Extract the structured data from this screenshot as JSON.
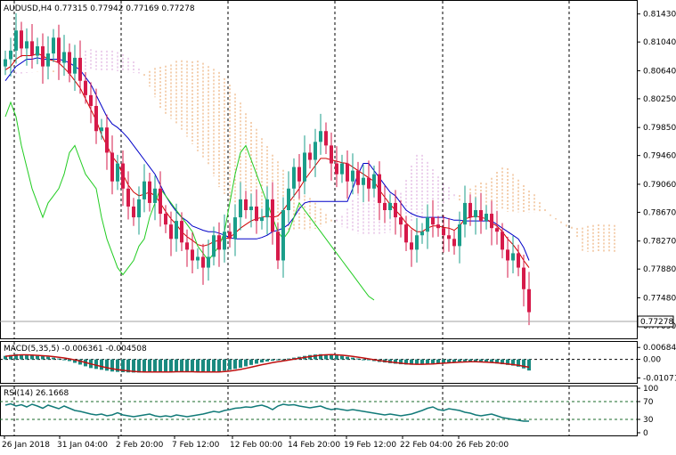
{
  "symbol_line": "AUDUSD,H4  0.77315 0.77942 0.77169 0.77278",
  "macd_label": "MACD(5,35,5) -0.006361 -0.004508",
  "rsi_label": "RSI(14) 26.1668",
  "current_price": "0.77278",
  "colors": {
    "bull": "#1a9e8a",
    "bear": "#d61a4a",
    "kijun": "#0000c8",
    "tenkan": "#d00000",
    "chikou": "#22cc22",
    "cloud_up": "#e8a060",
    "cloud_down": "#d8a0d8",
    "macd_hist": "#1a8a80",
    "macd_signal": "#c01010",
    "rsi": "#117a78",
    "grid": "#000000"
  },
  "chart_data": [
    {
      "type": "candlestick",
      "title": "AUDUSD,H4",
      "price_ticks": [
        "0.81430",
        "0.81040",
        "0.80640",
        "0.80250",
        "0.79850",
        "0.79460",
        "0.79060",
        "0.78670",
        "0.78270",
        "0.77880",
        "0.77480",
        "0.77090"
      ],
      "time_labels": [
        "26 Jan 2018",
        "31 Jan 04:00",
        "2 Feb 20:00",
        "7 Feb 12:00",
        "12 Feb 00:00",
        "14 Feb 20:00",
        "19 Feb 12:00",
        "22 Feb 04:00",
        "26 Feb 20:00"
      ],
      "ylim": [
        0.7699,
        0.8155
      ],
      "close": [
        0.808,
        0.8092,
        0.812,
        0.8095,
        0.8105,
        0.8085,
        0.8098,
        0.807,
        0.8088,
        0.811,
        0.8075,
        0.809,
        0.806,
        0.8082,
        0.805,
        0.803,
        0.8015,
        0.798,
        0.7985,
        0.795,
        0.791,
        0.7935,
        0.79,
        0.7875,
        0.786,
        0.7885,
        0.791,
        0.788,
        0.79,
        0.7865,
        0.785,
        0.783,
        0.7855,
        0.7825,
        0.7815,
        0.78,
        0.7805,
        0.779,
        0.7805,
        0.7835,
        0.7815,
        0.784,
        0.783,
        0.786,
        0.7885,
        0.787,
        0.7875,
        0.7855,
        0.786,
        0.7885,
        0.784,
        0.78,
        0.787,
        0.79,
        0.793,
        0.791,
        0.795,
        0.794,
        0.7965,
        0.798,
        0.796,
        0.7935,
        0.792,
        0.7935,
        0.791,
        0.7925,
        0.7905,
        0.7915,
        0.79,
        0.792,
        0.788,
        0.787,
        0.788,
        0.786,
        0.785,
        0.7825,
        0.7815,
        0.7835,
        0.784,
        0.786,
        0.785,
        0.7845,
        0.7835,
        0.783,
        0.782,
        0.785,
        0.788,
        0.786,
        0.787,
        0.7855,
        0.7865,
        0.7845,
        0.784,
        0.7815,
        0.78,
        0.781,
        0.779,
        0.776,
        0.7728
      ],
      "tenkan": [
        0.8065,
        0.807,
        0.808,
        0.8085,
        0.8085,
        0.8085,
        0.8088,
        0.8085,
        0.808,
        0.8078,
        0.8075,
        0.8068,
        0.806,
        0.805,
        0.804,
        0.8025,
        0.801,
        0.7995,
        0.7975,
        0.796,
        0.7945,
        0.7935,
        0.792,
        0.7905,
        0.7895,
        0.789,
        0.7892,
        0.7895,
        0.789,
        0.788,
        0.7868,
        0.7858,
        0.785,
        0.784,
        0.7833,
        0.7828,
        0.7822,
        0.782,
        0.7822,
        0.7826,
        0.7828,
        0.783,
        0.7832,
        0.7838,
        0.7845,
        0.785,
        0.7855,
        0.7858,
        0.786,
        0.7862,
        0.786,
        0.7862,
        0.787,
        0.788,
        0.789,
        0.79,
        0.7912,
        0.7922,
        0.7932,
        0.7942,
        0.7942,
        0.794,
        0.7938,
        0.7936,
        0.7935,
        0.793,
        0.7925,
        0.792,
        0.7915,
        0.791,
        0.7898,
        0.7888,
        0.7878,
        0.787,
        0.7862,
        0.7852,
        0.7845,
        0.784,
        0.784,
        0.7845,
        0.7848,
        0.7848,
        0.7846,
        0.7845,
        0.7842,
        0.7848,
        0.7858,
        0.786,
        0.7862,
        0.786,
        0.7858,
        0.7852,
        0.7848,
        0.784,
        0.783,
        0.7822,
        0.7812,
        0.78,
        0.779
      ],
      "kijun": [
        0.805,
        0.806,
        0.807,
        0.8075,
        0.808,
        0.808,
        0.8082,
        0.808,
        0.808,
        0.808,
        0.808,
        0.8078,
        0.8075,
        0.807,
        0.8065,
        0.8055,
        0.8045,
        0.803,
        0.8015,
        0.8,
        0.799,
        0.7985,
        0.7978,
        0.797,
        0.796,
        0.795,
        0.794,
        0.793,
        0.792,
        0.7905,
        0.789,
        0.7878,
        0.7868,
        0.786,
        0.7855,
        0.7848,
        0.7845,
        0.7842,
        0.784,
        0.784,
        0.7838,
        0.7835,
        0.7832,
        0.783,
        0.783,
        0.783,
        0.783,
        0.783,
        0.7832,
        0.7835,
        0.784,
        0.7842,
        0.7845,
        0.785,
        0.786,
        0.7872,
        0.788,
        0.7882,
        0.7882,
        0.7882,
        0.7882,
        0.7882,
        0.7882,
        0.7882,
        0.7882,
        0.79,
        0.792,
        0.7935,
        0.7935,
        0.7925,
        0.7915,
        0.7905,
        0.7895,
        0.789,
        0.788,
        0.787,
        0.7865,
        0.7862,
        0.786,
        0.786,
        0.786,
        0.786,
        0.786,
        0.7858,
        0.7856,
        0.7856,
        0.7855,
        0.7855,
        0.7855,
        0.7855,
        0.7855,
        0.7855,
        0.785,
        0.7845,
        0.784,
        0.7835,
        0.783,
        0.7818,
        0.78
      ],
      "chikou": [
        0.8,
        0.802,
        0.8,
        0.796,
        0.793,
        0.79,
        0.788,
        0.786,
        0.788,
        0.789,
        0.79,
        0.792,
        0.795,
        0.796,
        0.794,
        0.792,
        0.791,
        0.79,
        0.786,
        0.783,
        0.781,
        0.779,
        0.778,
        0.779,
        0.78,
        0.782,
        0.783,
        0.786,
        0.788,
        0.79,
        0.789,
        0.788,
        0.787,
        0.786,
        0.785,
        0.784,
        0.782,
        0.781,
        0.78,
        0.781,
        0.782,
        0.784,
        0.788,
        0.792,
        0.795,
        0.796,
        0.794,
        0.792,
        0.79,
        0.788,
        0.786,
        0.784,
        0.783,
        0.784,
        0.786,
        0.788,
        0.787,
        0.786,
        0.785,
        0.784,
        0.783,
        0.782,
        0.781,
        0.78,
        0.779,
        0.778,
        0.777,
        0.776,
        0.775,
        0.7745
      ]
    },
    {
      "type": "bar",
      "title": "MACD(5,35,5) -0.006361 -0.004508",
      "ticks": [
        "0.006842",
        "0.00",
        "-0.010711"
      ],
      "ylim": [
        -0.0125,
        0.0085
      ],
      "hist": [
        0.002,
        0.0025,
        0.003,
        0.0028,
        0.0025,
        0.0022,
        0.002,
        0.0018,
        0.0015,
        0.001,
        0.0005,
        0.0,
        -0.001,
        -0.002,
        -0.003,
        -0.004,
        -0.005,
        -0.0055,
        -0.006,
        -0.0065,
        -0.007,
        -0.0072,
        -0.0074,
        -0.0075,
        -0.0076,
        -0.0076,
        -0.0075,
        -0.0074,
        -0.0073,
        -0.0072,
        -0.0071,
        -0.007,
        -0.007,
        -0.007,
        -0.0071,
        -0.0072,
        -0.0073,
        -0.0074,
        -0.0074,
        -0.0073,
        -0.007,
        -0.0065,
        -0.006,
        -0.0055,
        -0.0048,
        -0.004,
        -0.0032,
        -0.0025,
        -0.0018,
        -0.0012,
        -0.0008,
        -0.0004,
        0.0,
        0.0005,
        0.001,
        0.0015,
        0.002,
        0.0025,
        0.0028,
        0.003,
        0.0029,
        0.0027,
        0.0024,
        0.002,
        0.0015,
        0.001,
        0.0005,
        0.0,
        -0.0005,
        -0.001,
        -0.0015,
        -0.0018,
        -0.0022,
        -0.0025,
        -0.0028,
        -0.003,
        -0.0031,
        -0.003,
        -0.0028,
        -0.0026,
        -0.0024,
        -0.0022,
        -0.002,
        -0.0018,
        -0.0016,
        -0.0014,
        -0.0012,
        -0.0012,
        -0.0014,
        -0.0016,
        -0.0018,
        -0.002,
        -0.0024,
        -0.0028,
        -0.0032,
        -0.0036,
        -0.0042,
        -0.0052,
        -0.0064
      ],
      "signal": [
        0.0018,
        0.0021,
        0.0024,
        0.0026,
        0.0026,
        0.0025,
        0.0023,
        0.0021,
        0.0019,
        0.0016,
        0.0012,
        0.0008,
        0.0003,
        -0.0003,
        -0.001,
        -0.0018,
        -0.0026,
        -0.0034,
        -0.0041,
        -0.0048,
        -0.0054,
        -0.0059,
        -0.0063,
        -0.0066,
        -0.0069,
        -0.0071,
        -0.0072,
        -0.0073,
        -0.0073,
        -0.0073,
        -0.0072,
        -0.0072,
        -0.0071,
        -0.0071,
        -0.0071,
        -0.0071,
        -0.0072,
        -0.0072,
        -0.0073,
        -0.0073,
        -0.0072,
        -0.007,
        -0.0067,
        -0.0063,
        -0.0058,
        -0.0052,
        -0.0045,
        -0.0038,
        -0.0031,
        -0.0025,
        -0.0019,
        -0.0014,
        -0.0009,
        -0.0004,
        0.0001,
        0.0006,
        0.0011,
        0.0016,
        0.002,
        0.0024,
        0.0026,
        0.0027,
        0.0026,
        0.0024,
        0.0021,
        0.0017,
        0.0013,
        0.0008,
        0.0003,
        -0.0002,
        -0.0007,
        -0.0011,
        -0.0015,
        -0.0019,
        -0.0022,
        -0.0025,
        -0.0027,
        -0.0028,
        -0.0028,
        -0.0027,
        -0.0026,
        -0.0024,
        -0.0022,
        -0.002,
        -0.0018,
        -0.0016,
        -0.0015,
        -0.0014,
        -0.0014,
        -0.0015,
        -0.0016,
        -0.0018,
        -0.002,
        -0.0023,
        -0.0026,
        -0.003,
        -0.0034,
        -0.004,
        -0.0045
      ]
    },
    {
      "type": "line",
      "title": "RSI(14) 26.1668",
      "ticks": [
        "100",
        "70",
        "30",
        "0"
      ],
      "ylim": [
        0,
        100
      ],
      "levels": [
        70,
        30
      ],
      "values": [
        62,
        65,
        60,
        63,
        58,
        64,
        60,
        55,
        62,
        58,
        54,
        60,
        55,
        50,
        48,
        45,
        42,
        40,
        42,
        38,
        40,
        45,
        40,
        38,
        36,
        38,
        40,
        42,
        38,
        36,
        38,
        36,
        40,
        38,
        36,
        38,
        40,
        42,
        45,
        48,
        46,
        50,
        52,
        55,
        56,
        58,
        57,
        60,
        62,
        58,
        52,
        60,
        64,
        62,
        63,
        60,
        58,
        56,
        58,
        60,
        55,
        52,
        54,
        52,
        50,
        52,
        50,
        48,
        46,
        44,
        42,
        40,
        42,
        40,
        38,
        40,
        42,
        46,
        50,
        55,
        58,
        52,
        50,
        54,
        52,
        50,
        46,
        44,
        40,
        38,
        40,
        42,
        38,
        34,
        32,
        30,
        28,
        26,
        26
      ]
    }
  ]
}
